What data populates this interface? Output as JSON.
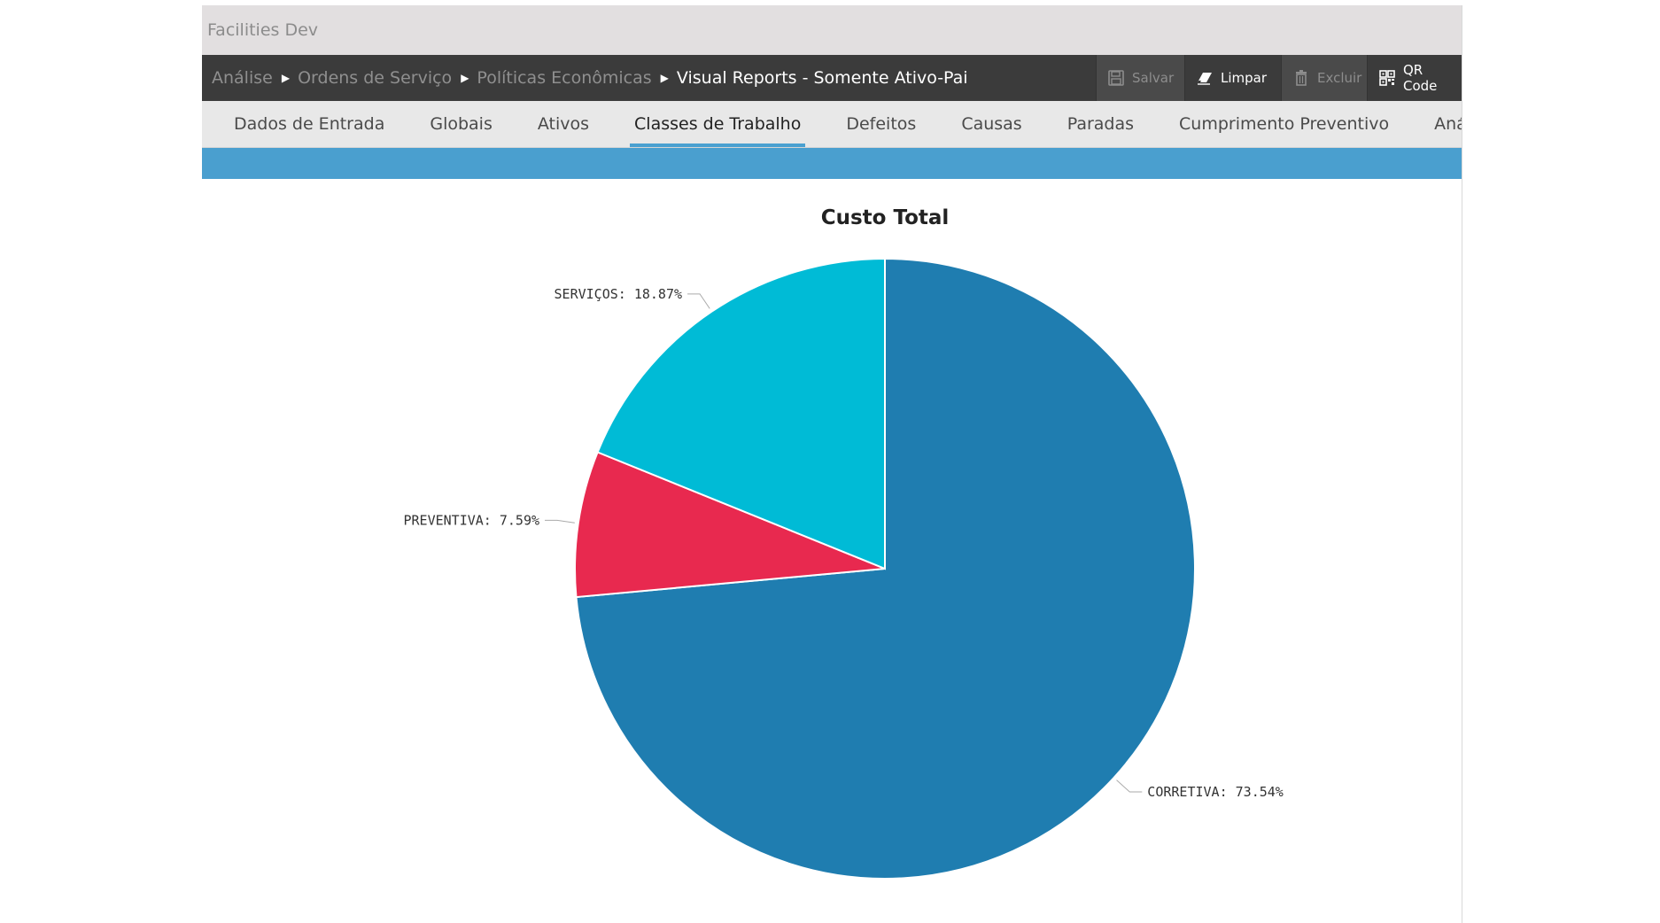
{
  "window": {
    "title": "Facilities Dev"
  },
  "breadcrumb": {
    "items": [
      "Análise",
      "Ordens de Serviço",
      "Políticas Econômicas"
    ],
    "current": "Visual Reports - Somente Ativo-Pai"
  },
  "toolbar": {
    "save_label": "Salvar",
    "clear_label": "Limpar",
    "delete_label": "Excluir",
    "qr_label": "QR Code"
  },
  "tabs": [
    {
      "label": "Dados de Entrada"
    },
    {
      "label": "Globais"
    },
    {
      "label": "Ativos"
    },
    {
      "label": "Classes de Trabalho",
      "active": true
    },
    {
      "label": "Defeitos"
    },
    {
      "label": "Causas"
    },
    {
      "label": "Paradas"
    },
    {
      "label": "Cumprimento Preventivo"
    },
    {
      "label": "Análises de Respo"
    }
  ],
  "colors": {
    "accent_bar": "#4a9fcf",
    "corretiva": "#1f7db0",
    "preventiva": "#e8294f",
    "servicos": "#00bbd6"
  },
  "chart_data": {
    "type": "pie",
    "title": "Custo Total",
    "slices": [
      {
        "label": "CORRETIVA: 73.54%",
        "name": "CORRETIVA",
        "value": 73.54,
        "color": "#1f7db0"
      },
      {
        "label": "PREVENTIVA: 7.59%",
        "name": "PREVENTIVA",
        "value": 7.59,
        "color": "#e8294f"
      },
      {
        "label": "SERVIÇOS: 18.87%",
        "name": "SERVIÇOS",
        "value": 18.87,
        "color": "#00bbd6"
      }
    ]
  }
}
